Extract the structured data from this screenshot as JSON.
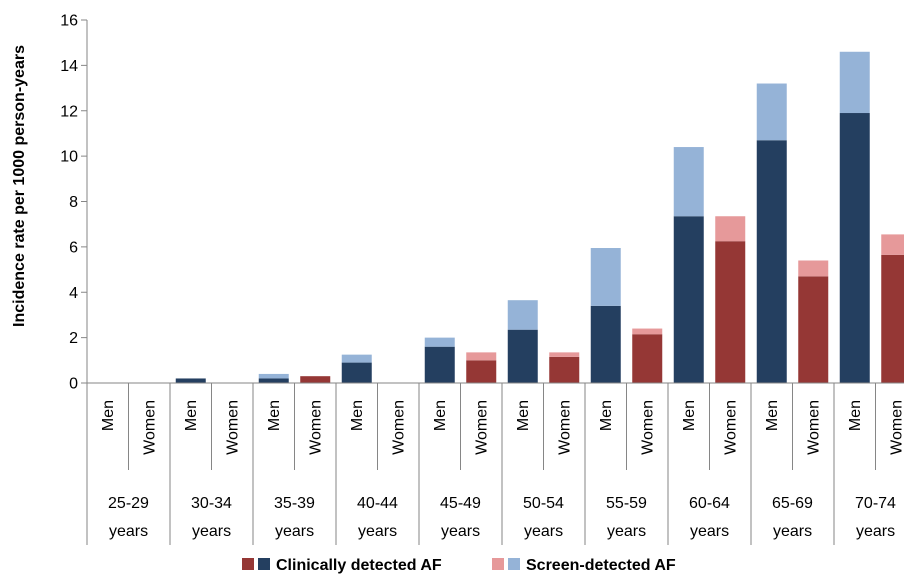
{
  "chart_data": {
    "type": "bar",
    "stacked": true,
    "ylabel": "Incidence rate per 1000 person-years",
    "ylim": [
      0,
      16
    ],
    "yticks": [
      0,
      2,
      4,
      6,
      8,
      10,
      12,
      14,
      16
    ],
    "grid": false,
    "legend_position": "bottom",
    "groups": [
      {
        "label": "25-29 years",
        "line1": "25-29",
        "line2": "years",
        "bars": [
          {
            "sex": "Men",
            "clinical": 0,
            "screen": 0
          },
          {
            "sex": "Women",
            "clinical": 0,
            "screen": 0
          }
        ]
      },
      {
        "label": "30-34 years",
        "line1": "30-34",
        "line2": "years",
        "bars": [
          {
            "sex": "Men",
            "clinical": 0.2,
            "screen": 0
          },
          {
            "sex": "Women",
            "clinical": 0,
            "screen": 0
          }
        ]
      },
      {
        "label": "35-39 years",
        "line1": "35-39",
        "line2": "years",
        "bars": [
          {
            "sex": "Men",
            "clinical": 0.2,
            "screen": 0.2
          },
          {
            "sex": "Women",
            "clinical": 0.3,
            "screen": 0
          }
        ]
      },
      {
        "label": "40-44 years",
        "line1": "40-44",
        "line2": "years",
        "bars": [
          {
            "sex": "Men",
            "clinical": 0.9,
            "screen": 0.35
          },
          {
            "sex": "Women",
            "clinical": 0,
            "screen": 0
          }
        ]
      },
      {
        "label": "45-49 years",
        "line1": "45-49",
        "line2": "years",
        "bars": [
          {
            "sex": "Men",
            "clinical": 1.6,
            "screen": 0.4
          },
          {
            "sex": "Women",
            "clinical": 1.0,
            "screen": 0.35
          }
        ]
      },
      {
        "label": "50-54 years",
        "line1": "50-54",
        "line2": "years",
        "bars": [
          {
            "sex": "Men",
            "clinical": 2.35,
            "screen": 1.3
          },
          {
            "sex": "Women",
            "clinical": 1.15,
            "screen": 0.2
          }
        ]
      },
      {
        "label": "55-59 years",
        "line1": "55-59",
        "line2": "years",
        "bars": [
          {
            "sex": "Men",
            "clinical": 3.4,
            "screen": 2.55
          },
          {
            "sex": "Women",
            "clinical": 2.15,
            "screen": 0.25
          }
        ]
      },
      {
        "label": "60-64 years",
        "line1": "60-64",
        "line2": "years",
        "bars": [
          {
            "sex": "Men",
            "clinical": 7.35,
            "screen": 3.05
          },
          {
            "sex": "Women",
            "clinical": 6.25,
            "screen": 1.1
          }
        ]
      },
      {
        "label": "65-69 years",
        "line1": "65-69",
        "line2": "years",
        "bars": [
          {
            "sex": "Men",
            "clinical": 10.7,
            "screen": 2.5
          },
          {
            "sex": "Women",
            "clinical": 4.7,
            "screen": 0.7
          }
        ]
      },
      {
        "label": "70-74 years",
        "line1": "70-74",
        "line2": "years",
        "bars": [
          {
            "sex": "Men",
            "clinical": 11.9,
            "screen": 2.7
          },
          {
            "sex": "Women",
            "clinical": 5.65,
            "screen": 0.9
          }
        ]
      }
    ],
    "colors": {
      "men_clinical": "#243f60",
      "men_screen": "#95b3d7",
      "women_clinical": "#953735",
      "women_screen": "#e6999a"
    },
    "legend": [
      {
        "label": "Clinically detected AF",
        "colors": [
          "#953735",
          "#243f60"
        ]
      },
      {
        "label": "Screen-detected AF",
        "colors": [
          "#e6999a",
          "#95b3d7"
        ]
      }
    ]
  }
}
